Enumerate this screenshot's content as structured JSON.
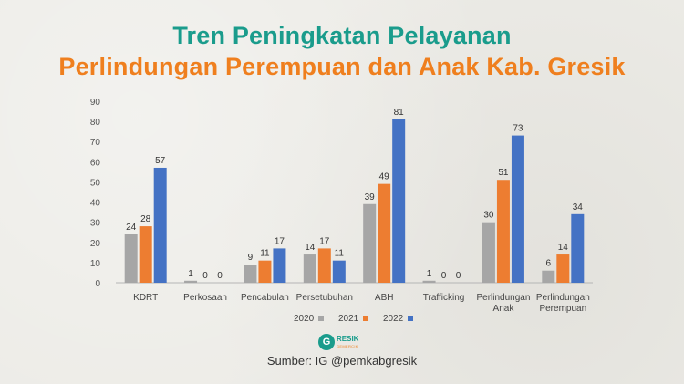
{
  "title_line1": "Tren Peningkatan Pelayanan",
  "title_line2": "Perlindungan Perempuan dan Anak Kab. Gresik",
  "source": "Sumber: IG @pemkabgresik",
  "logo": {
    "name": "RESIK",
    "sub": "GEMERCIK"
  },
  "colors": {
    "title1": "#1a9c8c",
    "title2": "#ef7f1e"
  },
  "chart_data": {
    "type": "bar",
    "categories": [
      [
        "KDRT"
      ],
      [
        "Perkosaan"
      ],
      [
        "Pencabulan"
      ],
      [
        "Persetubuhan"
      ],
      [
        "ABH"
      ],
      [
        "Trafficking"
      ],
      [
        "Perlindungan",
        "Anak"
      ],
      [
        "Perlindungan",
        "Perempuan"
      ]
    ],
    "series": [
      {
        "name": "2020",
        "color": "#a6a6a6",
        "values": [
          24,
          1,
          9,
          14,
          39,
          1,
          30,
          6
        ]
      },
      {
        "name": "2021",
        "color": "#ed7d31",
        "values": [
          28,
          0,
          11,
          17,
          49,
          0,
          51,
          14
        ]
      },
      {
        "name": "2022",
        "color": "#4472c4",
        "values": [
          57,
          0,
          17,
          11,
          81,
          0,
          73,
          34
        ]
      }
    ],
    "ylim": [
      0,
      90
    ],
    "yticks": [
      0,
      10,
      20,
      30,
      40,
      50,
      60,
      70,
      80,
      90
    ],
    "legend": "bottom",
    "grid": false
  }
}
